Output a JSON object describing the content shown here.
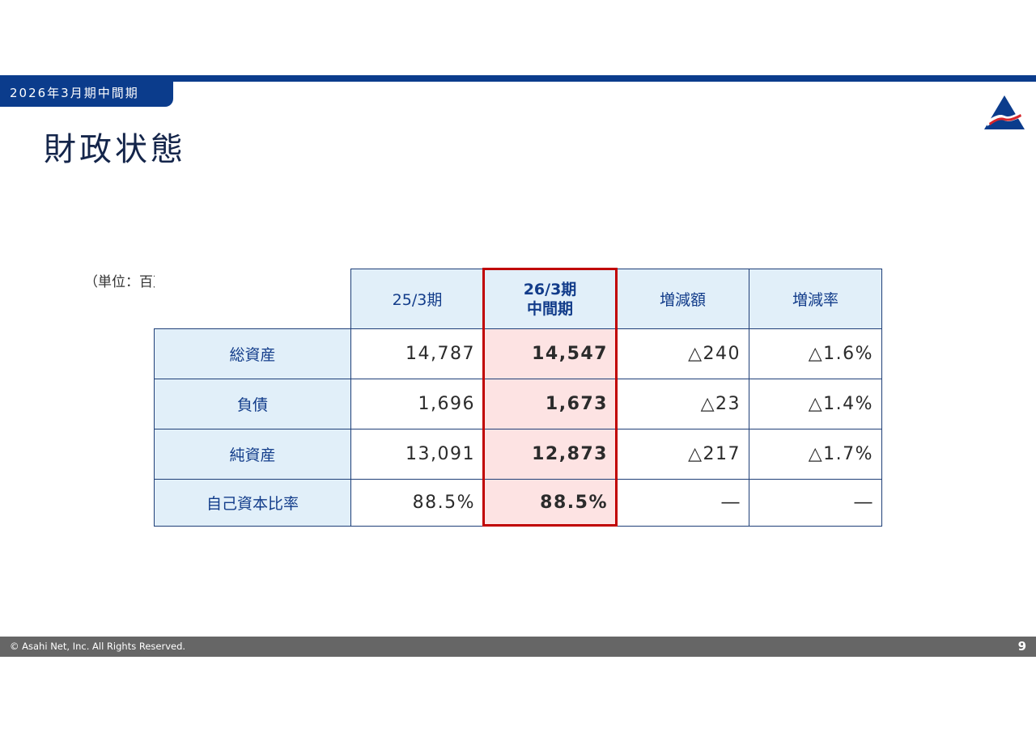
{
  "header": {
    "period_tab": "2026年3月期中間期",
    "title": "財政状態"
  },
  "colors": {
    "brand_blue": "#0b3c8c",
    "header_cell_bg": "#e1eff9",
    "highlight_cell_bg": "#fde3e3",
    "highlight_border": "#c00000"
  },
  "logo": {
    "icon": "asahi-net-triangle-logo"
  },
  "table": {
    "unit_note": "（単位：百万円）",
    "columns": {
      "prev": "25/3期",
      "current_line1": "26/3期",
      "current_line2": "中間期",
      "change": "増減額",
      "change_rate": "増減率"
    },
    "rows": [
      {
        "label": "総資産",
        "prev": "14,787",
        "current": "14,547",
        "change": "△240",
        "rate": "△1.6%"
      },
      {
        "label": "負債",
        "prev": "1,696",
        "current": "1,673",
        "change": "△23",
        "rate": "△1.4%"
      },
      {
        "label": "純資産",
        "prev": "13,091",
        "current": "12,873",
        "change": "△217",
        "rate": "△1.7%"
      },
      {
        "label": "自己資本比率",
        "prev": "88.5%",
        "current": "88.5%",
        "change": "―",
        "rate": "―"
      }
    ]
  },
  "footer": {
    "copyright": "© Asahi Net, Inc. All Rights Reserved.",
    "page_number": "9"
  }
}
